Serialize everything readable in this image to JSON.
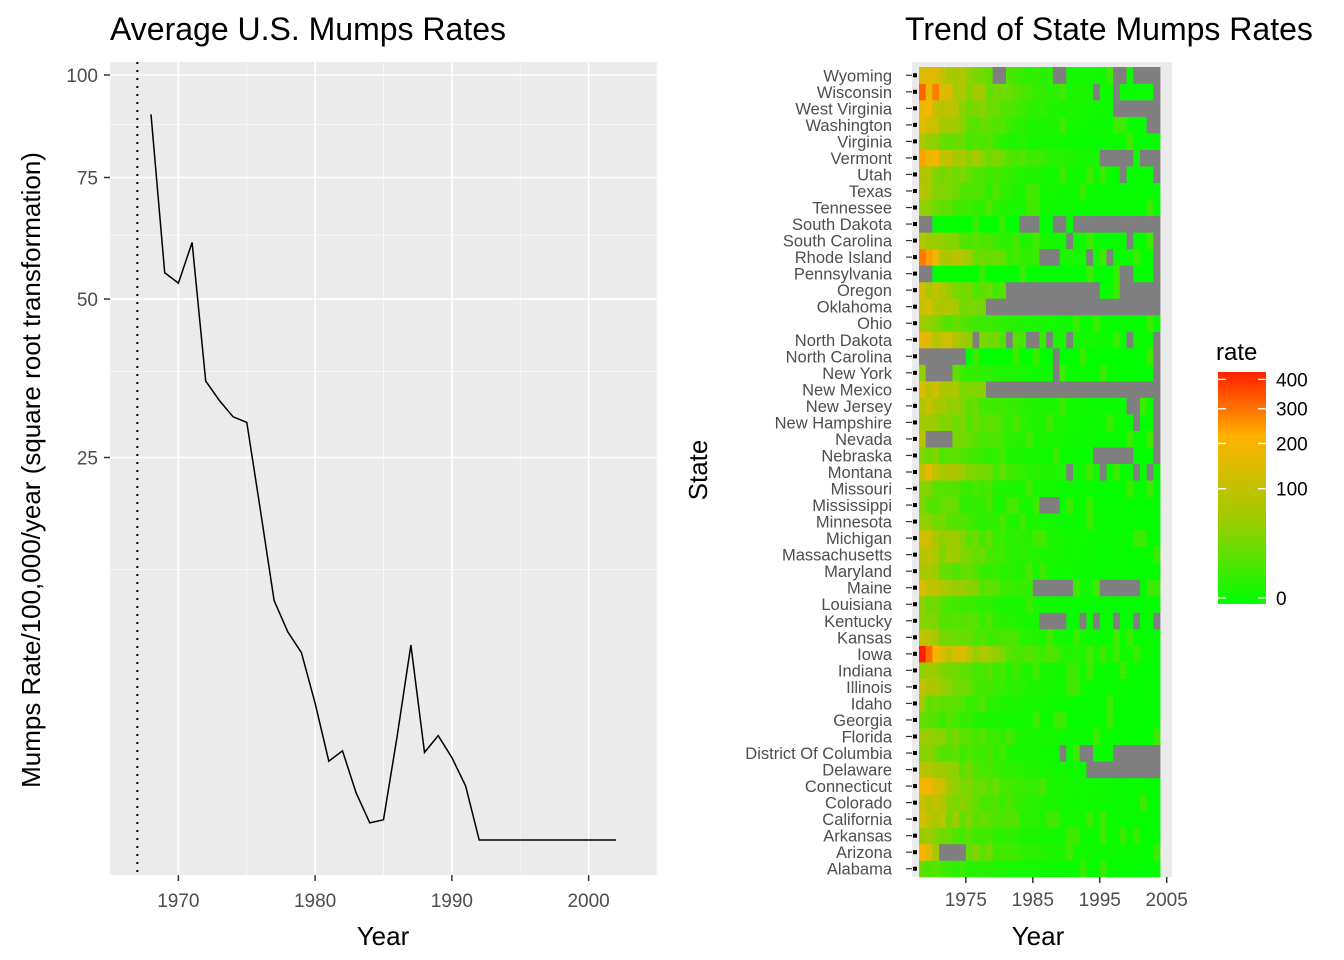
{
  "chart_data": [
    {
      "type": "line",
      "title": "Average U.S. Mumps Rates",
      "xlabel": "Year",
      "ylabel": "Mumps Rate/100,000/year (square root transformation)",
      "y_scale": "sqrt",
      "xlim": [
        1965,
        2005
      ],
      "ylim": [
        0,
        100
      ],
      "x_ticks": [
        1970,
        1980,
        1990,
        2000
      ],
      "y_ticks": [
        25,
        50,
        75,
        100
      ],
      "grid": true,
      "reference_line": {
        "x": 1967,
        "style": "dotted",
        "label": ""
      },
      "x": [
        1968,
        1969,
        1970,
        1971,
        1972,
        1973,
        1974,
        1975,
        1976,
        1977,
        1978,
        1979,
        1980,
        1981,
        1982,
        1983,
        1984,
        1985,
        1986,
        1987,
        1988,
        1989,
        1990,
        1991,
        1992,
        1993,
        1994,
        1995,
        1996,
        1997,
        1998,
        1999,
        2000,
        2001,
        2002
      ],
      "y": [
        90,
        55,
        53,
        61,
        36,
        33,
        30.6,
        29.8,
        18.6,
        9.8,
        7.4,
        6.0,
        3.2,
        1.06,
        1.36,
        0.38,
        0.05,
        0.07,
        1.85,
        6.5,
        1.31,
        1.86,
        1.16,
        0.5,
        0.0,
        0.0,
        0.0,
        0.0,
        0.0,
        0.0,
        0.0,
        0.0,
        0.0,
        0.0,
        0.0
      ]
    },
    {
      "type": "heatmap",
      "title": "Trend of State Mumps Rates",
      "xlabel": "Year",
      "ylabel": "State",
      "x_ticks": [
        1975,
        1985,
        1995,
        2005
      ],
      "color_scale": "sqrt",
      "legend": {
        "title": "rate",
        "position": "right",
        "ticks": [
          0,
          100,
          200,
          300,
          400
        ],
        "colors": [
          "#00ff00",
          "#99cc00",
          "#ffb300",
          "#ff2000"
        ]
      },
      "missing_color": "#7f7f7f",
      "states": [
        "Alabama",
        "Arizona",
        "Arkansas",
        "California",
        "Colorado",
        "Connecticut",
        "Delaware",
        "District Of Columbia",
        "Florida",
        "Georgia",
        "Idaho",
        "Illinois",
        "Indiana",
        "Iowa",
        "Kansas",
        "Kentucky",
        "Louisiana",
        "Maine",
        "Maryland",
        "Massachusetts",
        "Michigan",
        "Minnesota",
        "Mississippi",
        "Missouri",
        "Montana",
        "Nebraska",
        "Nevada",
        "New Hampshire",
        "New Jersey",
        "New Mexico",
        "New York",
        "North Carolina",
        "North Dakota",
        "Ohio",
        "Oklahoma",
        "Oregon",
        "Pennsylvania",
        "Rhode Island",
        "South Carolina",
        "South Dakota",
        "Tennessee",
        "Texas",
        "Utah",
        "Vermont",
        "Virginia",
        "Washington",
        "West Virginia",
        "Wisconsin",
        "Wyoming"
      ],
      "years": [
        1968,
        1969,
        1970,
        1971,
        1972,
        1973,
        1974,
        1975,
        1976,
        1977,
        1978,
        1979,
        1980,
        1981,
        1982,
        1983,
        1984,
        1985,
        1986,
        1987,
        1988,
        1989,
        1990,
        1991,
        1992,
        1993,
        1994,
        1995,
        1996,
        1997,
        1998,
        1999,
        2000,
        2001,
        2002,
        2003
      ],
      "initial_rates": [
        20,
        150,
        60,
        120,
        120,
        180,
        80,
        40,
        60,
        20,
        40,
        80,
        60,
        400,
        80,
        40,
        30,
        150,
        60,
        100,
        100,
        40,
        30,
        40,
        150,
        40,
        80,
        100,
        100,
        150,
        30,
        0,
        200,
        60,
        150,
        120,
        0,
        200,
        80,
        0,
        40,
        60,
        80,
        300,
        60,
        120,
        200,
        300,
        200
      ],
      "state_missing_years": {
        "Arizona": [
          1971,
          1972,
          1973,
          1974
        ],
        "Delaware": [
          1993,
          1994,
          1995,
          1996,
          1997,
          1998,
          1999,
          2000,
          2001,
          2002,
          2003
        ],
        "District Of Columbia": [
          1989,
          1992,
          1993,
          1997,
          1998,
          1999,
          2000,
          2001,
          2002,
          2003
        ],
        "Kentucky": [
          1986,
          1987,
          1988,
          1989,
          1992,
          1994,
          1997,
          2000,
          2003
        ],
        "Maine": [
          1985,
          1986,
          1987,
          1988,
          1989,
          1990,
          1995,
          1996,
          1997,
          1998,
          1999,
          2000
        ],
        "Mississippi": [
          1986,
          1987,
          1988
        ],
        "Montana": [
          1990,
          1995,
          2000,
          2002
        ],
        "Nebraska": [
          1994,
          1995,
          1996,
          1997,
          1998,
          1999,
          2003
        ],
        "Nevada": [
          1969,
          1970,
          1971,
          1972,
          2003
        ],
        "New Hampshire": [
          2000,
          2003
        ],
        "New Jersey": [
          1999,
          2000,
          2003
        ],
        "New Mexico": [
          1978,
          1979,
          1980,
          1981,
          1982,
          1983,
          1984,
          1985,
          1986,
          1987,
          1988,
          1989,
          1990,
          1991,
          1992,
          1993,
          1994,
          1995,
          1996,
          1997,
          1998,
          1999,
          2000,
          2001,
          2002,
          2003
        ],
        "New York": [
          1969,
          1970,
          1971,
          1972,
          1988,
          2003
        ],
        "North Carolina": [
          1968,
          1969,
          1970,
          1971,
          1972,
          1973,
          1974,
          1988,
          2003
        ],
        "North Dakota": [
          1976,
          1981,
          1984,
          1985,
          1987,
          1990,
          1999,
          2003
        ],
        "Oklahoma": [
          1978,
          1979,
          1980,
          1981,
          1982,
          1983,
          1984,
          1985,
          1986,
          1987,
          1988,
          1989,
          1990,
          1991,
          1992,
          1993,
          1994,
          1995,
          1996,
          1997,
          1998,
          1999,
          2000,
          2001,
          2002,
          2003
        ],
        "Oregon": [
          1981,
          1982,
          1983,
          1984,
          1985,
          1986,
          1987,
          1988,
          1989,
          1990,
          1991,
          1992,
          1993,
          1994,
          1998,
          1999,
          2000,
          2001,
          2002,
          2003
        ],
        "Pennsylvania": [
          1968,
          1969,
          1998,
          1999,
          2003
        ],
        "Rhode Island": [
          1986,
          1987,
          1988,
          1993,
          1996,
          2003
        ],
        "South Carolina": [
          1990,
          1999,
          2003
        ],
        "South Dakota": [
          1968,
          1969,
          1983,
          1984,
          1985,
          1988,
          1989,
          1991,
          1992,
          1993,
          1994,
          1995,
          1996,
          1997,
          1998,
          1999,
          2000,
          2001,
          2002,
          2003
        ],
        "Utah": [
          1998,
          2003
        ],
        "Vermont": [
          1995,
          1996,
          1997,
          1998,
          1999,
          2001,
          2002,
          2003
        ],
        "Washington": [
          2002,
          2003
        ],
        "West Virginia": [
          1997,
          1998,
          1999,
          2000,
          2001,
          2002,
          2003
        ],
        "Wisconsin": [
          1994,
          1997,
          2003
        ],
        "Wyoming": [
          1979,
          1980,
          1988,
          1989,
          1997,
          1998,
          2000,
          2001,
          2002,
          2003
        ]
      }
    }
  ]
}
